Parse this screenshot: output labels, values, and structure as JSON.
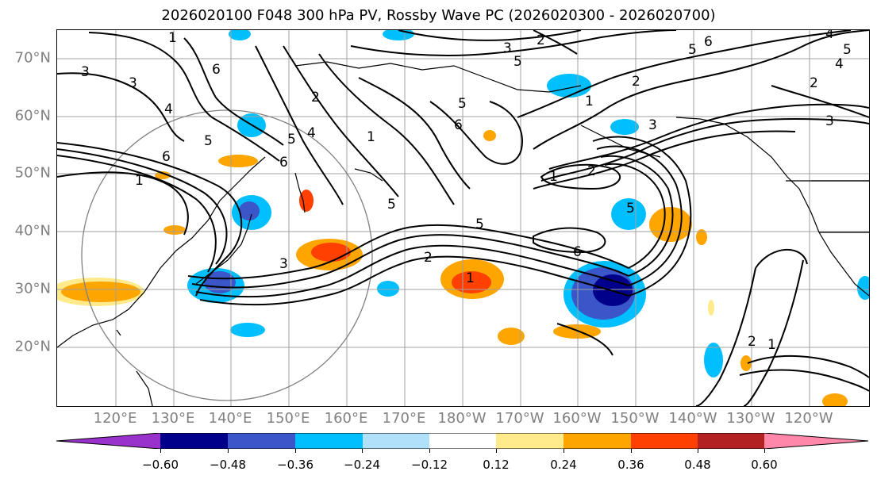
{
  "title": "2026020100 F048 300 hPa PV, Rossby Wave PC (2026020300 - 2026020700)",
  "map": {
    "lat_labels": [
      "70°N",
      "60°N",
      "50°N",
      "40°N",
      "30°N",
      "20°N"
    ],
    "lon_labels": [
      "120°E",
      "130°E",
      "140°E",
      "150°E",
      "160°E",
      "170°E",
      "180°W",
      "170°W",
      "160°W",
      "150°W",
      "140°W",
      "130°W",
      "120°W"
    ],
    "contour_labels": [
      "1",
      "2",
      "3",
      "4",
      "5",
      "6"
    ],
    "colors": {
      "label": "#808080",
      "contour": "#000000",
      "grid": "#a0a0a0"
    }
  },
  "colorbar": {
    "ticks": [
      "−0.60",
      "−0.48",
      "−0.36",
      "−0.24",
      "−0.12",
      "0.12",
      "0.24",
      "0.36",
      "0.48",
      "0.60"
    ],
    "colors": [
      "#9932cc",
      "#00008b",
      "#3a56c8",
      "#00bfff",
      "#b0e0fa",
      "#ffffff",
      "#ffea8c",
      "#ffa500",
      "#ff4000",
      "#b22222",
      "#ff88aa"
    ]
  }
}
